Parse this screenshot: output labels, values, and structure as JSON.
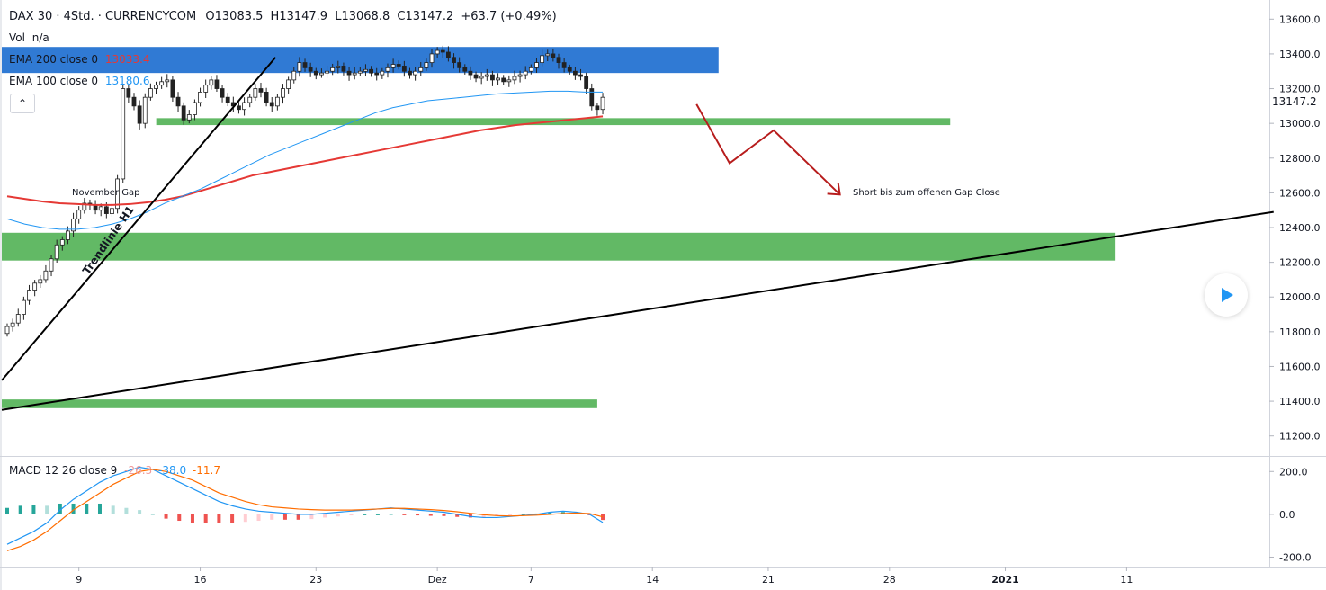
{
  "header": {
    "symbol": "DAX 30 · 4Std. · CURRENCYCOM",
    "open": "O13083.5",
    "high": "H13147.9",
    "low": "L13068.8",
    "close": "C13147.2",
    "change": "+63.7 (+0.49%)",
    "vol_label": "Vol",
    "vol_value": "n/a"
  },
  "indicators": {
    "ema200_label": "EMA 200 close 0",
    "ema200_value": "13033.4",
    "ema100_label": "EMA 100 close 0",
    "ema100_value": "13180.6",
    "macd_label": "MACD 12 26 close 9",
    "macd_hist": "-26.3",
    "macd_line": "-38.0",
    "macd_signal": "-11.7"
  },
  "colors": {
    "up": "#26a69a",
    "down": "#222222",
    "ema200": "#e53935",
    "ema100": "#2196f3",
    "zone_green": "#4caf50",
    "zone_blue": "#1e6fd0",
    "arrow": "#b71c1c",
    "macd_line": "#2196f3",
    "signal_line": "#ff6d00",
    "hist_up_strong": "#26a69a",
    "hist_up_weak": "#b2dfdb",
    "hist_down_strong": "#ef5350",
    "hist_down_weak": "#ffcdd2"
  },
  "current_price": "13147.2",
  "annotations": {
    "november_gap": "November Gap",
    "trendline": "Trendlinie H1",
    "short_text": "Short bis zum offenen Gap Close"
  },
  "chart_data": [
    {
      "type": "candlestick",
      "title": "DAX 30 · 4Std. · CURRENCYCOM",
      "x_ticks": [
        "9",
        "16",
        "23",
        "Dez",
        "7",
        "14",
        "21",
        "28",
        "2021",
        "11"
      ],
      "x_tick_index": [
        13,
        35,
        56,
        78,
        95,
        117,
        138,
        160,
        181,
        203
      ],
      "y_ticks": [
        11200,
        11400,
        11600,
        11800,
        12000,
        12200,
        12400,
        12600,
        12800,
        13000,
        13200,
        13400,
        13600
      ],
      "ylim": [
        11100,
        13700
      ],
      "grid": false,
      "ema200": [
        12580,
        12565,
        12550,
        12540,
        12535,
        12530,
        12530,
        12535,
        12545,
        12560,
        12580,
        12610,
        12640,
        12670,
        12700,
        12720,
        12740,
        12760,
        12780,
        12800,
        12820,
        12840,
        12860,
        12880,
        12900,
        12920,
        12940,
        12960,
        12975,
        12990,
        13000,
        13010,
        13020,
        13030,
        13040
      ],
      "ema100": [
        12450,
        12420,
        12400,
        12390,
        12390,
        12400,
        12420,
        12450,
        12490,
        12540,
        12580,
        12620,
        12670,
        12720,
        12770,
        12820,
        12860,
        12900,
        12940,
        12980,
        13020,
        13060,
        13090,
        13110,
        13130,
        13140,
        13150,
        13160,
        13170,
        13175,
        13180,
        13185,
        13185,
        13180,
        13180
      ],
      "zones": [
        {
          "from": 13290,
          "to": 13440,
          "start_index": 0,
          "end_index": 129,
          "color": "blue"
        },
        {
          "from": 12990,
          "to": 13030,
          "start_index": 28,
          "end_index": 171,
          "color": "green"
        },
        {
          "from": 12210,
          "to": 12370,
          "start_index": 0,
          "end_index": 201,
          "color": "green"
        },
        {
          "from": 11360,
          "to": 11410,
          "start_index": 0,
          "end_index": 107,
          "color": "green"
        }
      ],
      "trendlines": [
        {
          "name": "Trendlinie H1",
          "x1": 0,
          "y1": 11520,
          "x2": 48,
          "y2": 13380
        },
        {
          "x1": 0,
          "y1": 11350,
          "x2": 229,
          "y2": 12490
        }
      ],
      "projection": [
        {
          "x": 125,
          "y": 13110
        },
        {
          "x": 131,
          "y": 12770
        },
        {
          "x": 139,
          "y": 12960
        },
        {
          "x": 151,
          "y": 12590
        }
      ],
      "closes": [
        11830,
        11850,
        11900,
        11980,
        12040,
        12080,
        12100,
        12150,
        12220,
        12300,
        12330,
        12380,
        12450,
        12500,
        12540,
        12530,
        12500,
        12520,
        12480,
        12510,
        12680,
        13200,
        13150,
        13100,
        13000,
        13150,
        13200,
        13220,
        13240,
        13250,
        13150,
        13100,
        13020,
        13050,
        13120,
        13180,
        13220,
        13250,
        13200,
        13150,
        13120,
        13100,
        13080,
        13120,
        13150,
        13200,
        13180,
        13120,
        13100,
        13150,
        13200,
        13250,
        13300,
        13350,
        13320,
        13300,
        13280,
        13290,
        13300,
        13320,
        13330,
        13300,
        13280,
        13290,
        13300,
        13310,
        13290,
        13280,
        13300,
        13320,
        13340,
        13330,
        13300,
        13280,
        13300,
        13320,
        13350,
        13400,
        13420,
        13410,
        13380,
        13350,
        13320,
        13300,
        13280,
        13260,
        13270,
        13280,
        13250,
        13260,
        13240,
        13250,
        13270,
        13280,
        13300,
        13320,
        13350,
        13390,
        13400,
        13380,
        13350,
        13320,
        13300,
        13280,
        13270,
        13200,
        13100,
        13080,
        13150
      ]
    },
    {
      "type": "line",
      "title": "MACD 12 26 close 9",
      "y_ticks": [
        -200.0,
        0.0,
        200.0
      ],
      "ylim": [
        -240,
        260
      ],
      "series": [
        {
          "name": "MACD",
          "values": [
            -140,
            -110,
            -80,
            -40,
            20,
            70,
            110,
            150,
            180,
            200,
            220,
            210,
            180,
            150,
            120,
            90,
            60,
            40,
            25,
            15,
            10,
            5,
            0,
            0,
            5,
            10,
            15,
            20,
            25,
            30,
            25,
            20,
            15,
            10,
            0,
            -10,
            -15,
            -15,
            -10,
            -5,
            0,
            10,
            15,
            10,
            0,
            -38
          ]
        },
        {
          "name": "Signal",
          "values": [
            -170,
            -150,
            -120,
            -80,
            -30,
            20,
            60,
            100,
            140,
            170,
            200,
            210,
            200,
            180,
            160,
            130,
            100,
            80,
            60,
            45,
            35,
            30,
            25,
            22,
            20,
            20,
            20,
            22,
            25,
            28,
            28,
            25,
            22,
            18,
            12,
            5,
            -2,
            -6,
            -8,
            -6,
            -4,
            0,
            4,
            6,
            4,
            -11.7
          ]
        }
      ],
      "histogram": [
        30,
        40,
        45,
        40,
        50,
        50,
        50,
        50,
        40,
        30,
        20,
        0,
        -20,
        -30,
        -40,
        -40,
        -40,
        -40,
        -35,
        -30,
        -25,
        -25,
        -25,
        -22,
        -15,
        -10,
        -5,
        0,
        0,
        2,
        -3,
        -5,
        -7,
        -8,
        -12,
        -15,
        -13,
        -9,
        -2,
        1,
        4,
        10,
        11,
        4,
        -4,
        -26.3
      ]
    }
  ]
}
